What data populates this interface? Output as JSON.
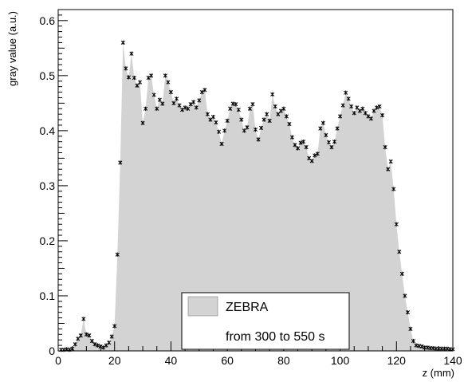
{
  "chart_data": {
    "type": "area",
    "xlabel": "z (mm)",
    "ylabel": "gray value (a.u.)",
    "xlim": [
      0,
      140
    ],
    "ylim": [
      0,
      0.62
    ],
    "x_ticks": [
      0,
      20,
      40,
      60,
      80,
      100,
      120,
      140
    ],
    "y_ticks": [
      0,
      0.1,
      0.2,
      0.3,
      0.4,
      0.5,
      0.6
    ],
    "x_tick_labels": [
      "0",
      "20",
      "40",
      "60",
      "80",
      "100",
      "120",
      "140"
    ],
    "y_tick_labels": [
      "0",
      "0.1",
      "0.2",
      "0.3",
      "0.4",
      "0.5",
      "0.6"
    ],
    "grid": false,
    "legend": {
      "placement": "bottom-center",
      "entry": "ZEBRA",
      "note": "from 300 to 550 s"
    },
    "colors": {
      "fill": "#d3d3d3",
      "marker": "#000000"
    },
    "series": [
      {
        "name": "ZEBRA",
        "x": [
          1,
          2,
          3,
          4,
          5,
          6,
          7,
          8,
          9,
          10,
          11,
          12,
          13,
          14,
          15,
          16,
          17,
          18,
          19,
          20,
          21,
          22,
          23,
          24,
          25,
          26,
          27,
          28,
          29,
          30,
          31,
          32,
          33,
          34,
          35,
          36,
          37,
          38,
          39,
          40,
          41,
          42,
          43,
          44,
          45,
          46,
          47,
          48,
          49,
          50,
          51,
          52,
          53,
          54,
          55,
          56,
          57,
          58,
          59,
          60,
          61,
          62,
          63,
          64,
          65,
          66,
          67,
          68,
          69,
          70,
          71,
          72,
          73,
          74,
          75,
          76,
          77,
          78,
          79,
          80,
          81,
          82,
          83,
          84,
          85,
          86,
          87,
          88,
          89,
          90,
          91,
          92,
          93,
          94,
          95,
          96,
          97,
          98,
          99,
          100,
          101,
          102,
          103,
          104,
          105,
          106,
          107,
          108,
          109,
          110,
          111,
          112,
          113,
          114,
          115,
          116,
          117,
          118,
          119,
          120,
          121,
          122,
          123,
          124,
          125,
          126,
          127,
          128,
          129,
          130,
          131,
          132,
          133,
          134,
          135,
          136,
          137,
          138,
          139,
          140
        ],
        "values": [
          0.002,
          0.002,
          0.003,
          0.002,
          0.004,
          0.012,
          0.022,
          0.028,
          0.058,
          0.03,
          0.028,
          0.018,
          0.012,
          0.01,
          0.008,
          0.006,
          0.01,
          0.015,
          0.026,
          0.045,
          0.175,
          0.342,
          0.56,
          0.513,
          0.497,
          0.54,
          0.496,
          0.482,
          0.488,
          0.414,
          0.44,
          0.496,
          0.5,
          0.465,
          0.44,
          0.456,
          0.449,
          0.5,
          0.488,
          0.47,
          0.45,
          0.458,
          0.446,
          0.438,
          0.442,
          0.44,
          0.448,
          0.452,
          0.442,
          0.455,
          0.47,
          0.474,
          0.43,
          0.42,
          0.425,
          0.415,
          0.398,
          0.376,
          0.4,
          0.418,
          0.44,
          0.449,
          0.448,
          0.438,
          0.42,
          0.4,
          0.406,
          0.44,
          0.448,
          0.402,
          0.384,
          0.405,
          0.42,
          0.43,
          0.418,
          0.466,
          0.444,
          0.43,
          0.436,
          0.44,
          0.426,
          0.412,
          0.388,
          0.374,
          0.368,
          0.378,
          0.38,
          0.37,
          0.35,
          0.345,
          0.355,
          0.358,
          0.404,
          0.414,
          0.392,
          0.379,
          0.37,
          0.38,
          0.404,
          0.426,
          0.446,
          0.469,
          0.458,
          0.444,
          0.432,
          0.442,
          0.436,
          0.44,
          0.432,
          0.426,
          0.422,
          0.436,
          0.442,
          0.444,
          0.428,
          0.37,
          0.33,
          0.344,
          0.294,
          0.23,
          0.18,
          0.14,
          0.1,
          0.07,
          0.04,
          0.018,
          0.01,
          0.009,
          0.008,
          0.006,
          0.006,
          0.005,
          0.005,
          0.004,
          0.004,
          0.004,
          0.004,
          0.004,
          0.003,
          0.003
        ]
      }
    ]
  }
}
